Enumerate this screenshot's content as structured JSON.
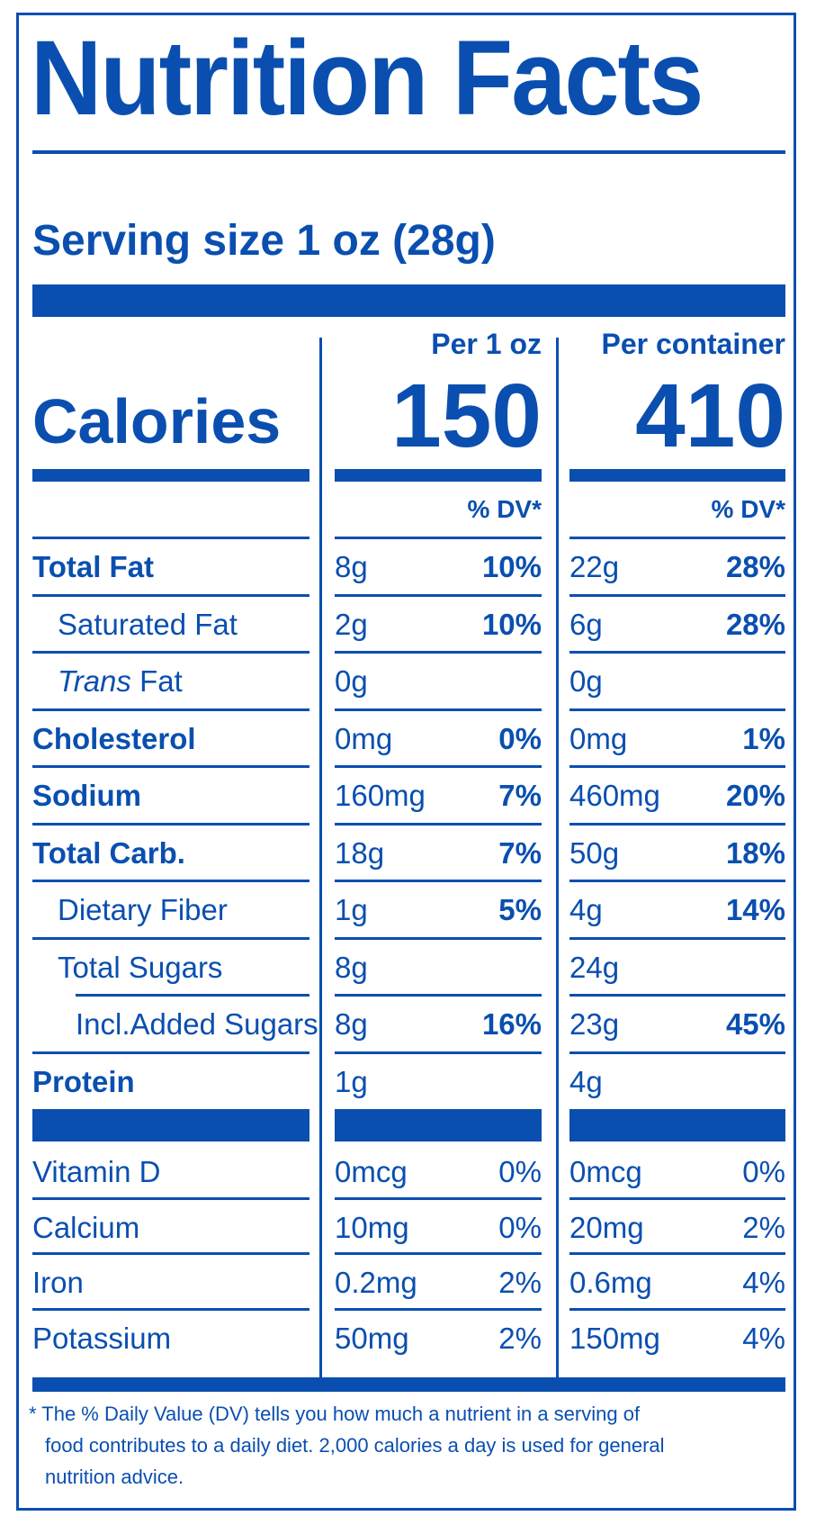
{
  "title": "Nutrition Facts",
  "serving": "Serving size 1 oz (28g)",
  "columns": {
    "per_serving_label": "Per 1 oz",
    "per_container_label": "Per container",
    "dv_label": "% DV*"
  },
  "calories": {
    "label": "Calories",
    "per_serving": "150",
    "per_container": "410"
  },
  "nutrients": [
    {
      "label": "Total Fat",
      "style": "bold",
      "a_amt": "8g",
      "a_dv": "10%",
      "b_amt": "22g",
      "b_dv": "28%"
    },
    {
      "label": "Saturated Fat",
      "style": "indent1",
      "a_amt": "2g",
      "a_dv": "10%",
      "b_amt": "6g",
      "b_dv": "28%"
    },
    {
      "label_italic": "Trans",
      "label": " Fat",
      "style": "indent1",
      "a_amt": "0g",
      "a_dv": "",
      "b_amt": "0g",
      "b_dv": ""
    },
    {
      "label": "Cholesterol",
      "style": "bold",
      "a_amt": "0mg",
      "a_dv": "0%",
      "b_amt": "0mg",
      "b_dv": "1%"
    },
    {
      "label": "Sodium",
      "style": "bold",
      "a_amt": "160mg",
      "a_dv": "7%",
      "b_amt": "460mg",
      "b_dv": "20%"
    },
    {
      "label": "Total Carb.",
      "style": "bold",
      "a_amt": "18g",
      "a_dv": "7%",
      "b_amt": "50g",
      "b_dv": "18%"
    },
    {
      "label": "Dietary Fiber",
      "style": "indent1",
      "a_amt": "1g",
      "a_dv": "5%",
      "b_amt": "4g",
      "b_dv": "14%"
    },
    {
      "label": "Total Sugars",
      "style": "indent1",
      "a_amt": "8g",
      "a_dv": "",
      "b_amt": "24g",
      "b_dv": ""
    },
    {
      "label": "Incl.Added Sugars",
      "style": "indent2",
      "a_amt": "8g",
      "a_dv": "16%",
      "b_amt": "23g",
      "b_dv": "45%"
    },
    {
      "label": "Protein",
      "style": "bold",
      "a_amt": "1g",
      "a_dv": "",
      "b_amt": "4g",
      "b_dv": ""
    }
  ],
  "vitamins": [
    {
      "label": "Vitamin D",
      "a_amt": "0mcg",
      "a_dv": "0%",
      "b_amt": "0mcg",
      "b_dv": "0%"
    },
    {
      "label": "Calcium",
      "a_amt": "10mg",
      "a_dv": "0%",
      "b_amt": "20mg",
      "b_dv": "2%"
    },
    {
      "label": "Iron",
      "a_amt": "0.2mg",
      "a_dv": "2%",
      "b_amt": "0.6mg",
      "b_dv": "4%"
    },
    {
      "label": "Potassium",
      "a_amt": "50mg",
      "a_dv": "2%",
      "b_amt": "150mg",
      "b_dv": "4%"
    }
  ],
  "footnote": {
    "line1": "* The % Daily Value (DV) tells you how much a nutrient in a serving of",
    "line2": "food contributes to a daily diet. 2,000 calories a day is used for general",
    "line3": "nutrition advice."
  },
  "colors": {
    "ink": "#0a4fb0",
    "background": "#ffffff"
  }
}
